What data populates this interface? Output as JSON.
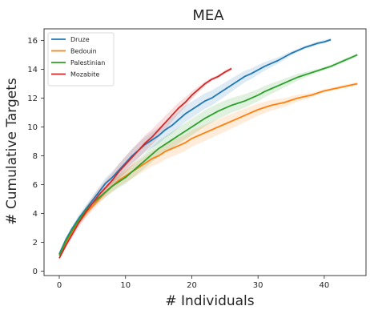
{
  "chart_data": {
    "type": "line",
    "title": "MEA",
    "xlabel": "# Individuals",
    "ylabel": "# Cumulative Targets",
    "xlim": [
      -2.3,
      46.3
    ],
    "ylim": [
      -0.3,
      16.8
    ],
    "xticks": [
      0,
      10,
      20,
      30,
      40
    ],
    "yticks": [
      0,
      2,
      4,
      6,
      8,
      10,
      12,
      14,
      16
    ],
    "grid": false,
    "legend_position": "top-left",
    "series": [
      {
        "name": "Druze",
        "color": "#1f77b4",
        "x": [
          0,
          1,
          2,
          3,
          4,
          5,
          6,
          7,
          8,
          9,
          10,
          11,
          12,
          13,
          14,
          15,
          16,
          17,
          18,
          19,
          20,
          21,
          22,
          23,
          24,
          25,
          26,
          27,
          28,
          29,
          30,
          31,
          32,
          33,
          34,
          35,
          36,
          37,
          38,
          39,
          40,
          41
        ],
        "y": [
          1.2,
          2.2,
          3.0,
          3.7,
          4.3,
          4.9,
          5.5,
          6.1,
          6.5,
          7.0,
          7.5,
          8.0,
          8.4,
          8.8,
          9.1,
          9.4,
          9.8,
          10.1,
          10.5,
          10.9,
          11.2,
          11.5,
          11.8,
          12.0,
          12.3,
          12.6,
          12.9,
          13.2,
          13.5,
          13.7,
          13.95,
          14.2,
          14.4,
          14.6,
          14.85,
          15.1,
          15.3,
          15.5,
          15.65,
          15.8,
          15.9,
          16.05
        ]
      },
      {
        "name": "Bedouin",
        "color": "#ff7f0e",
        "x": [
          0,
          1,
          2,
          3,
          4,
          5,
          6,
          7,
          8,
          9,
          10,
          11,
          12,
          13,
          14,
          15,
          16,
          17,
          18,
          19,
          20,
          21,
          22,
          23,
          24,
          25,
          26,
          27,
          28,
          29,
          30,
          31,
          32,
          33,
          34,
          35,
          36,
          37,
          38,
          39,
          40,
          41,
          42,
          43,
          44,
          45
        ],
        "y": [
          1.1,
          2.0,
          2.8,
          3.4,
          4.0,
          4.5,
          5.0,
          5.5,
          5.9,
          6.3,
          6.6,
          6.9,
          7.2,
          7.5,
          7.8,
          8.0,
          8.3,
          8.5,
          8.7,
          8.9,
          9.2,
          9.4,
          9.6,
          9.8,
          10.0,
          10.2,
          10.4,
          10.6,
          10.8,
          11.0,
          11.2,
          11.35,
          11.5,
          11.6,
          11.7,
          11.85,
          12.0,
          12.1,
          12.2,
          12.35,
          12.5,
          12.6,
          12.7,
          12.8,
          12.9,
          13.0
        ]
      },
      {
        "name": "Palestinian",
        "color": "#2ca02c",
        "x": [
          0,
          1,
          2,
          3,
          4,
          5,
          6,
          7,
          8,
          9,
          10,
          11,
          12,
          13,
          14,
          15,
          16,
          17,
          18,
          19,
          20,
          21,
          22,
          23,
          24,
          25,
          26,
          27,
          28,
          29,
          30,
          31,
          32,
          33,
          34,
          35,
          36,
          37,
          38,
          39,
          40,
          41,
          42,
          43,
          44,
          45
        ],
        "y": [
          1.1,
          2.1,
          2.9,
          3.6,
          4.2,
          4.7,
          5.1,
          5.5,
          5.9,
          6.2,
          6.5,
          6.9,
          7.3,
          7.7,
          8.1,
          8.5,
          8.8,
          9.1,
          9.4,
          9.7,
          10.0,
          10.3,
          10.6,
          10.85,
          11.1,
          11.3,
          11.5,
          11.65,
          11.8,
          12.0,
          12.2,
          12.45,
          12.65,
          12.85,
          13.05,
          13.25,
          13.45,
          13.6,
          13.75,
          13.9,
          14.05,
          14.2,
          14.4,
          14.6,
          14.8,
          15.0
        ]
      },
      {
        "name": "Mozabite",
        "color": "#d62728",
        "x": [
          0,
          1,
          2,
          3,
          4,
          5,
          6,
          7,
          8,
          9,
          10,
          11,
          12,
          13,
          14,
          15,
          16,
          17,
          18,
          19,
          20,
          21,
          22,
          23,
          24,
          25,
          26
        ],
        "y": [
          0.9,
          1.8,
          2.6,
          3.4,
          4.1,
          4.7,
          5.3,
          5.8,
          6.3,
          6.9,
          7.4,
          7.9,
          8.4,
          8.9,
          9.3,
          9.8,
          10.3,
          10.8,
          11.3,
          11.7,
          12.2,
          12.6,
          13.0,
          13.3,
          13.5,
          13.8,
          14.05
        ]
      }
    ]
  }
}
